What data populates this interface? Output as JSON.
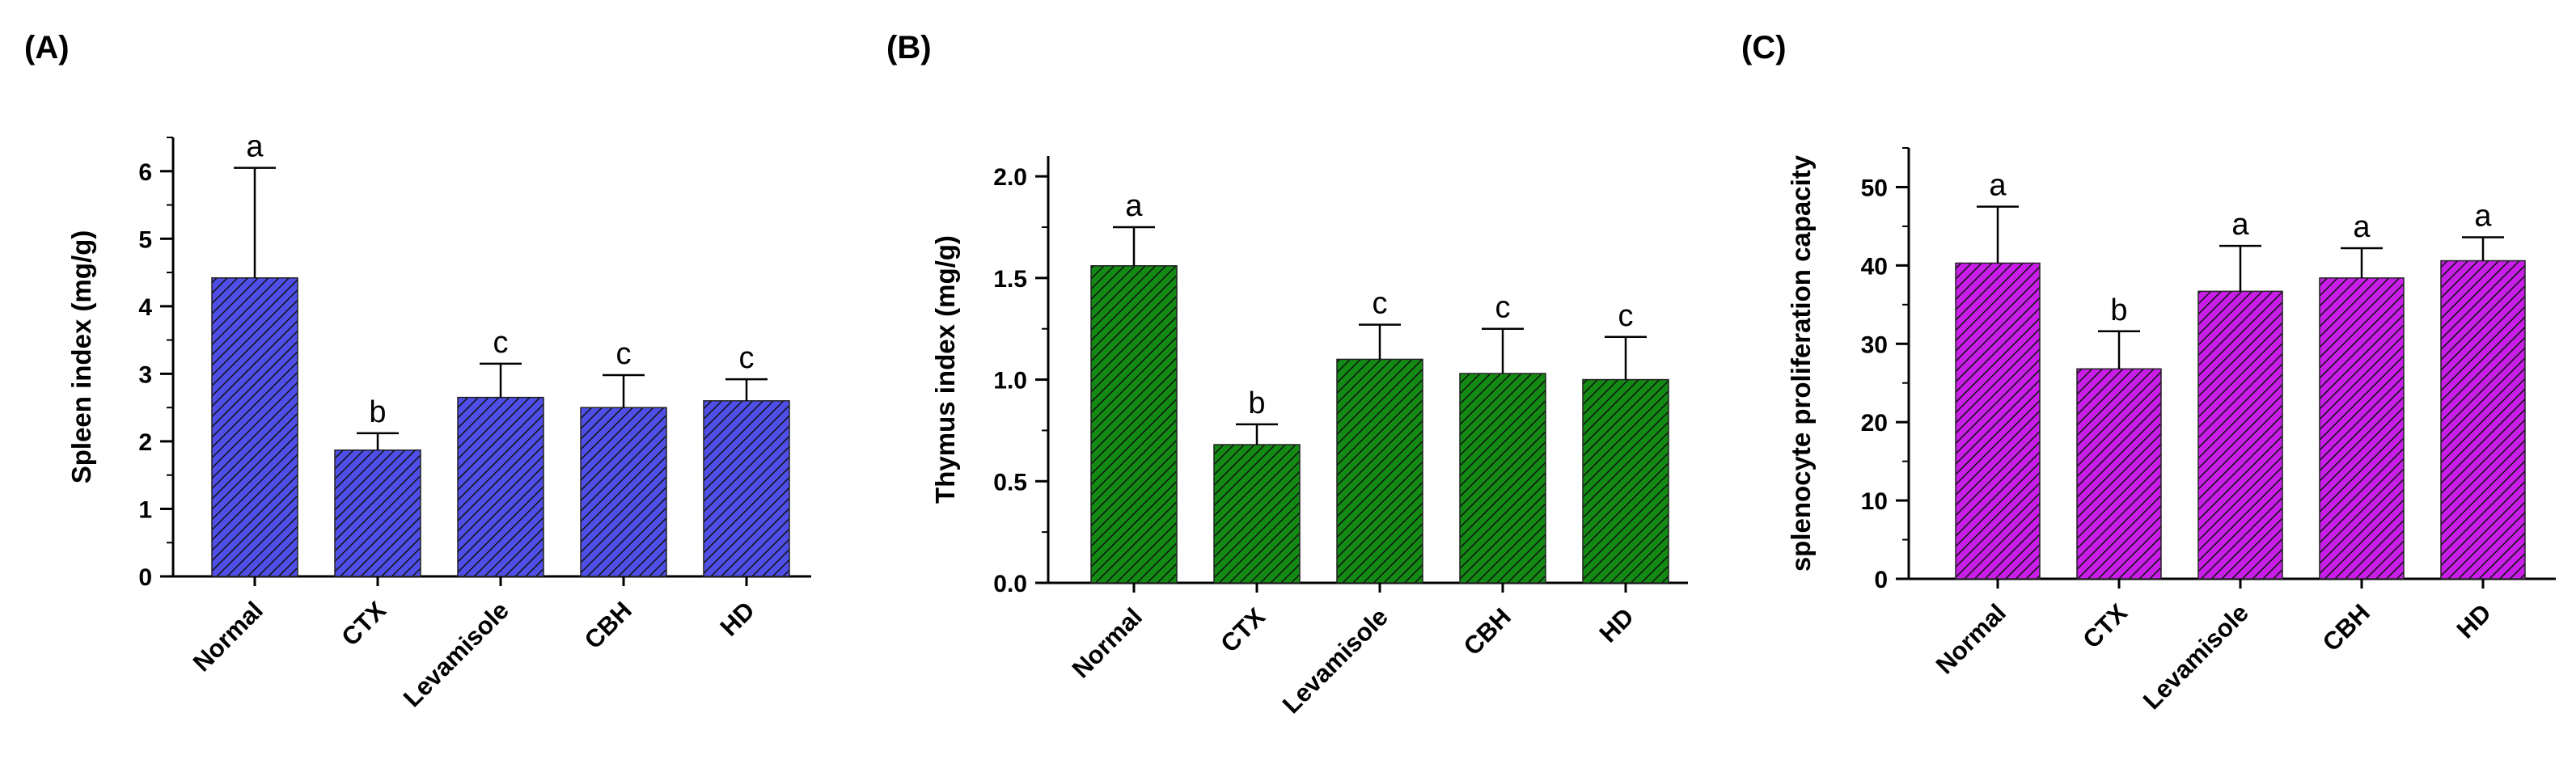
{
  "chart_data": [
    {
      "type": "bar",
      "panel": "(A)",
      "categories": [
        "Normal",
        "CTX",
        "Levamisole",
        "CBH",
        "HD"
      ],
      "values": [
        4.42,
        1.87,
        2.65,
        2.5,
        2.6
      ],
      "error": [
        1.63,
        0.25,
        0.5,
        0.48,
        0.32
      ],
      "letters": [
        "a",
        "b",
        "c",
        "c",
        "c"
      ],
      "ylabel": "Spleen index (mg/g)",
      "ylim": [
        0,
        6.5
      ],
      "yticks": [
        0,
        1,
        2,
        3,
        4,
        5,
        6
      ],
      "yminor": 0.5,
      "color": "#4f4fe8",
      "grid": false
    },
    {
      "type": "bar",
      "panel": "(B)",
      "categories": [
        "Normal",
        "CTX",
        "Levamisole",
        "CBH",
        "HD"
      ],
      "values": [
        1.56,
        0.68,
        1.1,
        1.03,
        1.0
      ],
      "error": [
        0.19,
        0.1,
        0.17,
        0.22,
        0.21
      ],
      "letters": [
        "a",
        "b",
        "c",
        "c",
        "c"
      ],
      "ylabel": "Thymus index (mg/g)",
      "ylim": [
        0,
        2.1
      ],
      "yticks": [
        "0.0",
        "0.5",
        "1.0",
        "1.5",
        "2.0"
      ],
      "yminor": 0.25,
      "color": "#138a13",
      "grid": false
    },
    {
      "type": "bar",
      "panel": "(C)",
      "categories": [
        "Normal",
        "CTX",
        "Levamisole",
        "CBH",
        "HD"
      ],
      "values": [
        40.3,
        26.8,
        36.7,
        38.4,
        40.6
      ],
      "error": [
        7.2,
        4.8,
        5.8,
        3.8,
        3.0
      ],
      "letters": [
        "a",
        "b",
        "a",
        "a",
        "a"
      ],
      "ylabel": "splenocyte proliferation capacity",
      "ylim": [
        0,
        55
      ],
      "yticks": [
        0,
        10,
        20,
        30,
        40,
        50
      ],
      "yminor": 5,
      "color": "#c81ee8",
      "grid": false
    }
  ]
}
